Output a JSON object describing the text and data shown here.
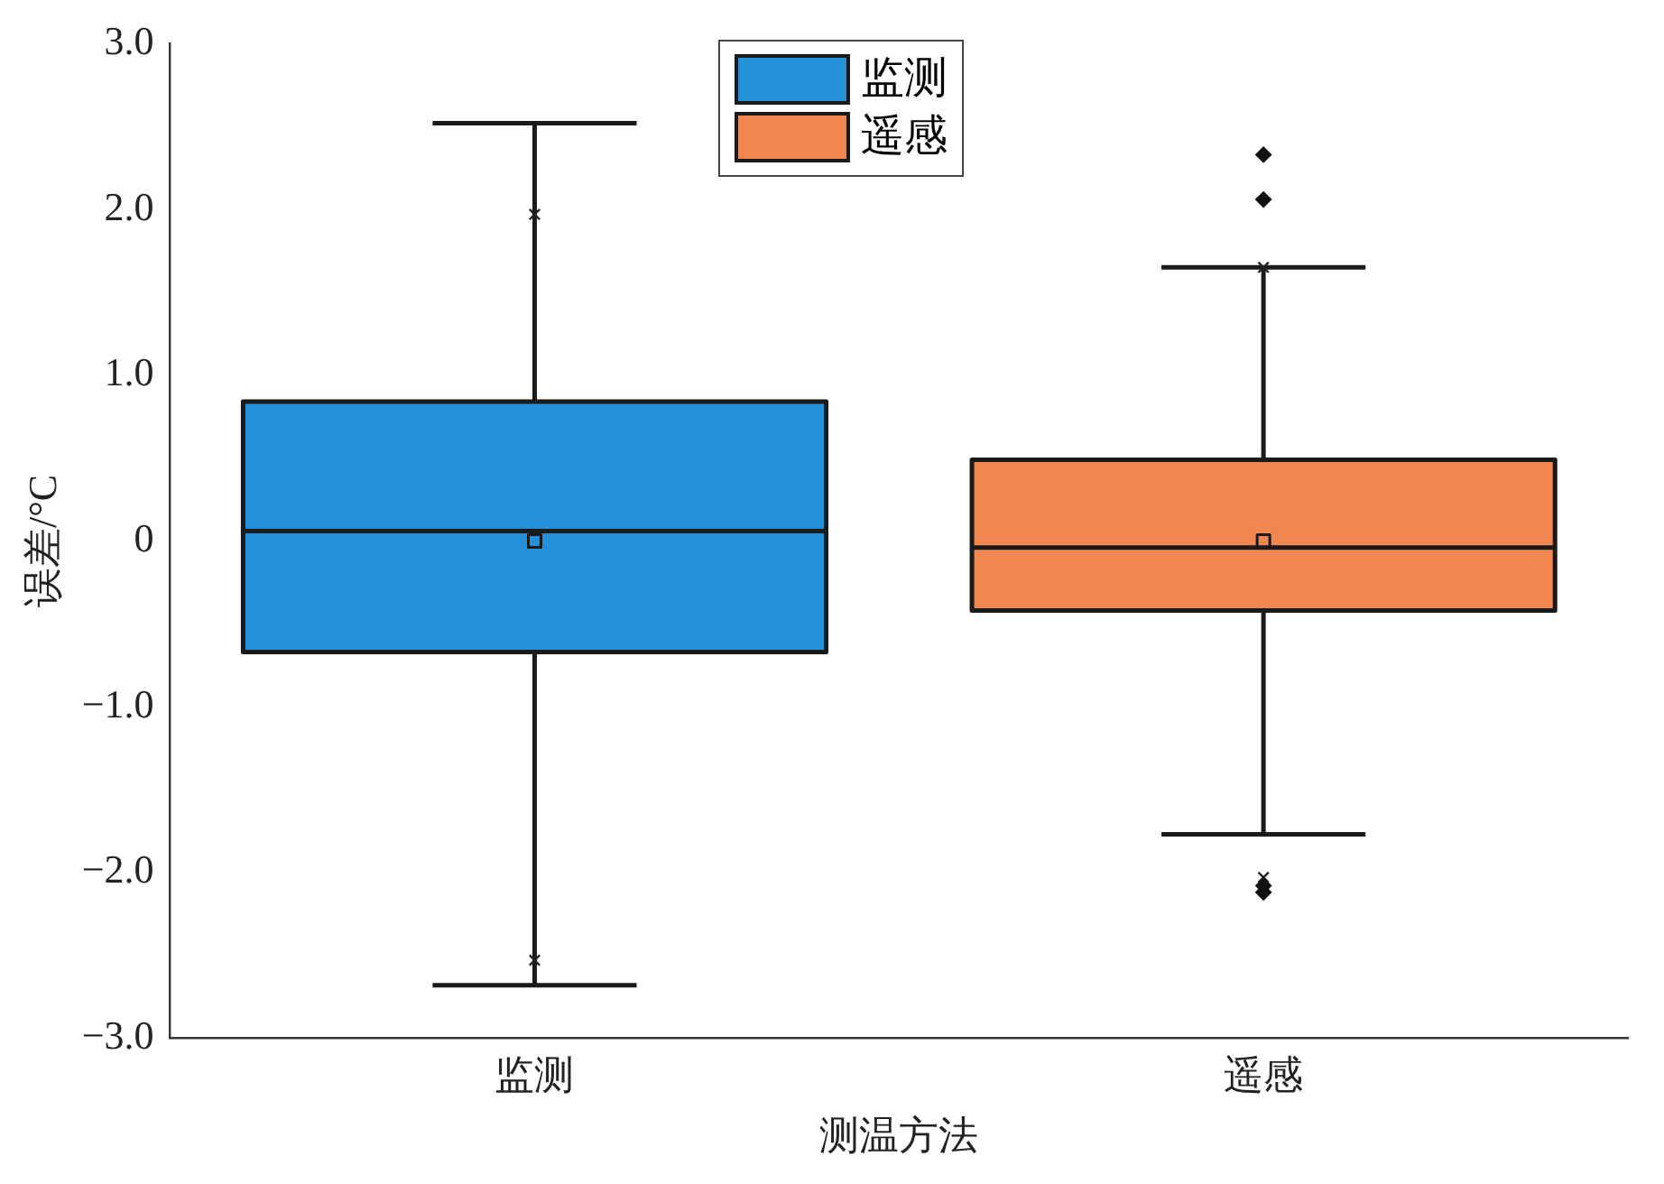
{
  "chart_data": {
    "type": "box",
    "xlabel": "测温方法",
    "ylabel": "误差/°C",
    "categories": [
      "监测",
      "遥感"
    ],
    "ylim": [
      -3,
      3
    ],
    "yticks": [
      {
        "value": -3,
        "label": "−3.0"
      },
      {
        "value": -2,
        "label": "−2.0"
      },
      {
        "value": -1,
        "label": "−1.0"
      },
      0,
      {
        "value": 1,
        "label": "1.0"
      },
      {
        "value": 2,
        "label": "2.0"
      },
      {
        "value": 3,
        "label": "3.0"
      }
    ],
    "grid": false,
    "legend": "top",
    "series": [
      {
        "name": "监测",
        "color": "#2390d9",
        "boxes": [
          {
            "low": -2.68,
            "q1": -0.67,
            "median": 0.06,
            "q3": 0.84,
            "high": 2.52,
            "mean": 0
          },
          null
        ]
      },
      {
        "name": "遥感",
        "color": "#f08650",
        "boxes": [
          null,
          {
            "low": -1.77,
            "q1": -0.42,
            "median": -0.04,
            "q3": 0.49,
            "high": 1.65,
            "mean": 0,
            "outliers": [
              2.33,
              2.06,
              -2.08,
              -2.12
            ]
          }
        ]
      },
      {
        "type": "scatter",
        "marker": "cross",
        "color": "#222222",
        "x": [
          "监测",
          "监测",
          "遥感",
          "遥感"
        ],
        "values": [
          1.97,
          -2.53,
          1.65,
          -2.03
        ]
      }
    ]
  }
}
